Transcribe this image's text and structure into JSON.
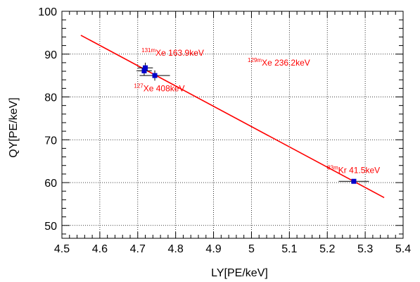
{
  "chart_data": {
    "type": "scatter",
    "title": "",
    "xlabel": "LY[PE/keV]",
    "ylabel": "QY[PE/keV]",
    "xlim": [
      4.5,
      5.4
    ],
    "ylim": [
      47,
      100
    ],
    "grid": true,
    "x_ticks": [
      "4.5",
      "4.6",
      "4.7",
      "4.8",
      "4.9",
      "5",
      "5.1",
      "5.2",
      "5.3",
      "5.4"
    ],
    "y_ticks": [
      "50",
      "60",
      "70",
      "80",
      "90",
      "100"
    ],
    "points": [
      {
        "x": 4.717,
        "y": 86.1,
        "xerr": 0.02,
        "yerr": 1.0
      },
      {
        "x": 4.72,
        "y": 86.8,
        "xerr": 0.02,
        "yerr": 1.2
      },
      {
        "x": 4.745,
        "y": 85.0,
        "xerr": 0.04,
        "yerr": 1.2
      },
      {
        "x": 5.27,
        "y": 60.3,
        "xerr": 0.04,
        "yerr": 0.5
      }
    ],
    "fit_line": {
      "x": [
        4.55,
        5.35
      ],
      "y": [
        94.4,
        56.5
      ]
    },
    "annotations": [
      {
        "sup": "131m",
        "text": "Xe 163.9keV",
        "x": 4.71,
        "y": 89.6
      },
      {
        "sup": "129m",
        "text": "Xe 236.2keV",
        "x": 4.99,
        "y": 87.3
      },
      {
        "sup": "127",
        "text": "Xe 408keV",
        "x": 4.69,
        "y": 81.3
      },
      {
        "sup": "83m",
        "text": "Kr 41.5keV",
        "x": 5.2,
        "y": 62.2
      }
    ],
    "colors": {
      "line": "#ff0000",
      "marker": "#0000cc",
      "annotation": "#ff0000",
      "error_bar": "#000000",
      "grid": "#000000"
    }
  }
}
